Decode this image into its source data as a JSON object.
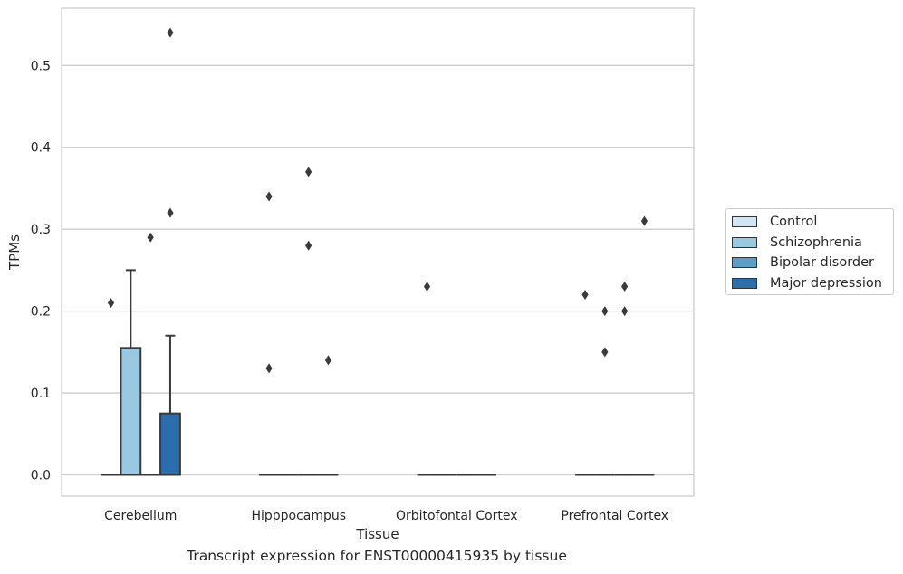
{
  "chart_data": {
    "type": "box",
    "title": "",
    "caption": "Transcript expression for ENST00000415935 by tissue",
    "xlabel": "Tissue",
    "ylabel": "TPMs",
    "ylim": [
      -0.026,
      0.57
    ],
    "yticks": [
      "0.0",
      "0.1",
      "0.2",
      "0.3",
      "0.4",
      "0.5"
    ],
    "grid": "horizontal",
    "legend_position": "right",
    "categories": [
      "Cerebellum",
      "Hipppocampus",
      "Orbitofontal Cortex",
      "Prefrontal Cortex"
    ],
    "series": [
      {
        "name": "Control",
        "color": "#d3e4f3",
        "boxes": [
          {
            "q1": 0,
            "median": 0,
            "q3": 0,
            "whisker_low": 0,
            "whisker_high": 0,
            "outliers": [
              0.21
            ]
          },
          {
            "q1": 0,
            "median": 0,
            "q3": 0,
            "whisker_low": 0,
            "whisker_high": 0,
            "outliers": [
              0.34,
              0.13
            ]
          },
          {
            "q1": 0,
            "median": 0,
            "q3": 0,
            "whisker_low": 0,
            "whisker_high": 0,
            "outliers": [
              0.23
            ]
          },
          {
            "q1": 0,
            "median": 0,
            "q3": 0,
            "whisker_low": 0,
            "whisker_high": 0,
            "outliers": [
              0.22
            ]
          }
        ]
      },
      {
        "name": "Schizophrenia",
        "color": "#9ac8e0",
        "boxes": [
          {
            "q1": 0,
            "median": 0,
            "q3": 0.155,
            "whisker_low": 0,
            "whisker_high": 0.25,
            "outliers": []
          },
          {
            "q1": 0,
            "median": 0,
            "q3": 0,
            "whisker_low": 0,
            "whisker_high": 0,
            "outliers": []
          },
          {
            "q1": 0,
            "median": 0,
            "q3": 0,
            "whisker_low": 0,
            "whisker_high": 0,
            "outliers": []
          },
          {
            "q1": 0,
            "median": 0,
            "q3": 0,
            "whisker_low": 0,
            "whisker_high": 0,
            "outliers": [
              0.2,
              0.15
            ]
          }
        ]
      },
      {
        "name": "Bipolar disorder",
        "color": "#5a9ec9",
        "boxes": [
          {
            "q1": 0,
            "median": 0,
            "q3": 0,
            "whisker_low": 0,
            "whisker_high": 0,
            "outliers": [
              0.29
            ]
          },
          {
            "q1": 0,
            "median": 0,
            "q3": 0,
            "whisker_low": 0,
            "whisker_high": 0,
            "outliers": [
              0.37,
              0.28
            ]
          },
          {
            "q1": 0,
            "median": 0,
            "q3": 0,
            "whisker_low": 0,
            "whisker_high": 0,
            "outliers": []
          },
          {
            "q1": 0,
            "median": 0,
            "q3": 0,
            "whisker_low": 0,
            "whisker_high": 0,
            "outliers": [
              0.23,
              0.2
            ]
          }
        ]
      },
      {
        "name": "Major depression",
        "color": "#2c6dab",
        "boxes": [
          {
            "q1": 0,
            "median": 0,
            "q3": 0.075,
            "whisker_low": 0,
            "whisker_high": 0.17,
            "outliers": [
              0.54,
              0.32
            ]
          },
          {
            "q1": 0,
            "median": 0,
            "q3": 0,
            "whisker_low": 0,
            "whisker_high": 0,
            "outliers": [
              0.14
            ]
          },
          {
            "q1": 0,
            "median": 0,
            "q3": 0,
            "whisker_low": 0,
            "whisker_high": 0,
            "outliers": []
          },
          {
            "q1": 0,
            "median": 0,
            "q3": 0,
            "whisker_low": 0,
            "whisker_high": 0,
            "outliers": [
              0.31
            ]
          }
        ]
      }
    ]
  }
}
